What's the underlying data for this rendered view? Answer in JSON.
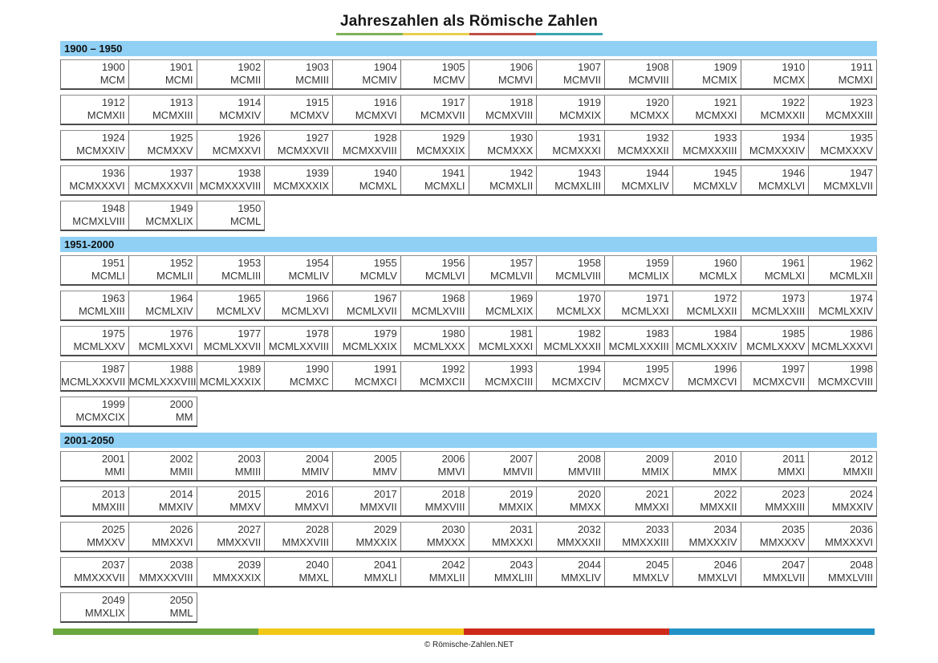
{
  "title": "Jahreszahlen als Römische Zahlen",
  "title_underline_colors": [
    "#7fb257",
    "#e8cf4d",
    "#bf4e45",
    "#3aa6ad"
  ],
  "footer_bar_colors": [
    "#6da73f",
    "#f1c816",
    "#ce2a19",
    "#2191c6"
  ],
  "colors": {
    "header_bg": "#90d0f4"
  },
  "columns_per_row": 12,
  "footer": {
    "copyright": "© Römische-Zahlen.NET"
  },
  "sections": [
    {
      "label": "1900 – 1950",
      "entries": [
        [
          "1900",
          "MCM"
        ],
        [
          "1901",
          "MCMI"
        ],
        [
          "1902",
          "MCMII"
        ],
        [
          "1903",
          "MCMIII"
        ],
        [
          "1904",
          "MCMIV"
        ],
        [
          "1905",
          "MCMV"
        ],
        [
          "1906",
          "MCMVI"
        ],
        [
          "1907",
          "MCMVII"
        ],
        [
          "1908",
          "MCMVIII"
        ],
        [
          "1909",
          "MCMIX"
        ],
        [
          "1910",
          "MCMX"
        ],
        [
          "1911",
          "MCMXI"
        ],
        [
          "1912",
          "MCMXII"
        ],
        [
          "1913",
          "MCMXIII"
        ],
        [
          "1914",
          "MCMXIV"
        ],
        [
          "1915",
          "MCMXV"
        ],
        [
          "1916",
          "MCMXVI"
        ],
        [
          "1917",
          "MCMXVII"
        ],
        [
          "1918",
          "MCMXVIII"
        ],
        [
          "1919",
          "MCMXIX"
        ],
        [
          "1920",
          "MCMXX"
        ],
        [
          "1921",
          "MCMXXI"
        ],
        [
          "1922",
          "MCMXXII"
        ],
        [
          "1923",
          "MCMXXIII"
        ],
        [
          "1924",
          "MCMXXIV"
        ],
        [
          "1925",
          "MCMXXV"
        ],
        [
          "1926",
          "MCMXXVI"
        ],
        [
          "1927",
          "MCMXXVII"
        ],
        [
          "1928",
          "MCMXXVIII"
        ],
        [
          "1929",
          "MCMXXIX"
        ],
        [
          "1930",
          "MCMXXX"
        ],
        [
          "1931",
          "MCMXXXI"
        ],
        [
          "1932",
          "MCMXXXII"
        ],
        [
          "1933",
          "MCMXXXIII"
        ],
        [
          "1934",
          "MCMXXXIV"
        ],
        [
          "1935",
          "MCMXXXV"
        ],
        [
          "1936",
          "MCMXXXVI"
        ],
        [
          "1937",
          "MCMXXXVII"
        ],
        [
          "1938",
          "MCMXXXVIII"
        ],
        [
          "1939",
          "MCMXXXIX"
        ],
        [
          "1940",
          "MCMXL"
        ],
        [
          "1941",
          "MCMXLI"
        ],
        [
          "1942",
          "MCMXLII"
        ],
        [
          "1943",
          "MCMXLIII"
        ],
        [
          "1944",
          "MCMXLIV"
        ],
        [
          "1945",
          "MCMXLV"
        ],
        [
          "1946",
          "MCMXLVI"
        ],
        [
          "1947",
          "MCMXLVII"
        ],
        [
          "1948",
          "MCMXLVIII"
        ],
        [
          "1949",
          "MCMXLIX"
        ],
        [
          "1950",
          "MCML"
        ]
      ]
    },
    {
      "label": "1951-2000",
      "entries": [
        [
          "1951",
          "MCMLI"
        ],
        [
          "1952",
          "MCMLII"
        ],
        [
          "1953",
          "MCMLIII"
        ],
        [
          "1954",
          "MCMLIV"
        ],
        [
          "1955",
          "MCMLV"
        ],
        [
          "1956",
          "MCMLVI"
        ],
        [
          "1957",
          "MCMLVII"
        ],
        [
          "1958",
          "MCMLVIII"
        ],
        [
          "1959",
          "MCMLIX"
        ],
        [
          "1960",
          "MCMLX"
        ],
        [
          "1961",
          "MCMLXI"
        ],
        [
          "1962",
          "MCMLXII"
        ],
        [
          "1963",
          "MCMLXIII"
        ],
        [
          "1964",
          "MCMLXIV"
        ],
        [
          "1965",
          "MCMLXV"
        ],
        [
          "1966",
          "MCMLXVI"
        ],
        [
          "1967",
          "MCMLXVII"
        ],
        [
          "1968",
          "MCMLXVIII"
        ],
        [
          "1969",
          "MCMLXIX"
        ],
        [
          "1970",
          "MCMLXX"
        ],
        [
          "1971",
          "MCMLXXI"
        ],
        [
          "1972",
          "MCMLXXII"
        ],
        [
          "1973",
          "MCMLXXIII"
        ],
        [
          "1974",
          "MCMLXXIV"
        ],
        [
          "1975",
          "MCMLXXV"
        ],
        [
          "1976",
          "MCMLXXVI"
        ],
        [
          "1977",
          "MCMLXXVII"
        ],
        [
          "1978",
          "MCMLXXVIII"
        ],
        [
          "1979",
          "MCMLXXIX"
        ],
        [
          "1980",
          "MCMLXXX"
        ],
        [
          "1981",
          "MCMLXXXI"
        ],
        [
          "1982",
          "MCMLXXXII"
        ],
        [
          "1983",
          "MCMLXXXIII"
        ],
        [
          "1984",
          "MCMLXXXIV"
        ],
        [
          "1985",
          "MCMLXXXV"
        ],
        [
          "1986",
          "MCMLXXXVI"
        ],
        [
          "1987",
          "MCMLXXXVII"
        ],
        [
          "1988",
          "MCMLXXXVIII"
        ],
        [
          "1989",
          "MCMLXXXIX"
        ],
        [
          "1990",
          "MCMXC"
        ],
        [
          "1991",
          "MCMXCI"
        ],
        [
          "1992",
          "MCMXCII"
        ],
        [
          "1993",
          "MCMXCIII"
        ],
        [
          "1994",
          "MCMXCIV"
        ],
        [
          "1995",
          "MCMXCV"
        ],
        [
          "1996",
          "MCMXCVI"
        ],
        [
          "1997",
          "MCMXCVII"
        ],
        [
          "1998",
          "MCMXCVIII"
        ],
        [
          "1999",
          "MCMXCIX"
        ],
        [
          "2000",
          "MM"
        ]
      ]
    },
    {
      "label": "2001-2050",
      "entries": [
        [
          "2001",
          "MMI"
        ],
        [
          "2002",
          "MMII"
        ],
        [
          "2003",
          "MMIII"
        ],
        [
          "2004",
          "MMIV"
        ],
        [
          "2005",
          "MMV"
        ],
        [
          "2006",
          "MMVI"
        ],
        [
          "2007",
          "MMVII"
        ],
        [
          "2008",
          "MMVIII"
        ],
        [
          "2009",
          "MMIX"
        ],
        [
          "2010",
          "MMX"
        ],
        [
          "2011",
          "MMXI"
        ],
        [
          "2012",
          "MMXII"
        ],
        [
          "2013",
          "MMXIII"
        ],
        [
          "2014",
          "MMXIV"
        ],
        [
          "2015",
          "MMXV"
        ],
        [
          "2016",
          "MMXVI"
        ],
        [
          "2017",
          "MMXVII"
        ],
        [
          "2018",
          "MMXVIII"
        ],
        [
          "2019",
          "MMXIX"
        ],
        [
          "2020",
          "MMXX"
        ],
        [
          "2021",
          "MMXXI"
        ],
        [
          "2022",
          "MMXXII"
        ],
        [
          "2023",
          "MMXXIII"
        ],
        [
          "2024",
          "MMXXIV"
        ],
        [
          "2025",
          "MMXXV"
        ],
        [
          "2026",
          "MMXXVI"
        ],
        [
          "2027",
          "MMXXVII"
        ],
        [
          "2028",
          "MMXXVIII"
        ],
        [
          "2029",
          "MMXXIX"
        ],
        [
          "2030",
          "MMXXX"
        ],
        [
          "2031",
          "MMXXXI"
        ],
        [
          "2032",
          "MMXXXII"
        ],
        [
          "2033",
          "MMXXXIII"
        ],
        [
          "2034",
          "MMXXXIV"
        ],
        [
          "2035",
          "MMXXXV"
        ],
        [
          "2036",
          "MMXXXVI"
        ],
        [
          "2037",
          "MMXXXVII"
        ],
        [
          "2038",
          "MMXXXVIII"
        ],
        [
          "2039",
          "MMXXXIX"
        ],
        [
          "2040",
          "MMXL"
        ],
        [
          "2041",
          "MMXLI"
        ],
        [
          "2042",
          "MMXLII"
        ],
        [
          "2043",
          "MMXLIII"
        ],
        [
          "2044",
          "MMXLIV"
        ],
        [
          "2045",
          "MMXLV"
        ],
        [
          "2046",
          "MMXLVI"
        ],
        [
          "2047",
          "MMXLVII"
        ],
        [
          "2048",
          "MMXLVIII"
        ],
        [
          "2049",
          "MMXLIX"
        ],
        [
          "2050",
          "MML"
        ]
      ]
    }
  ]
}
